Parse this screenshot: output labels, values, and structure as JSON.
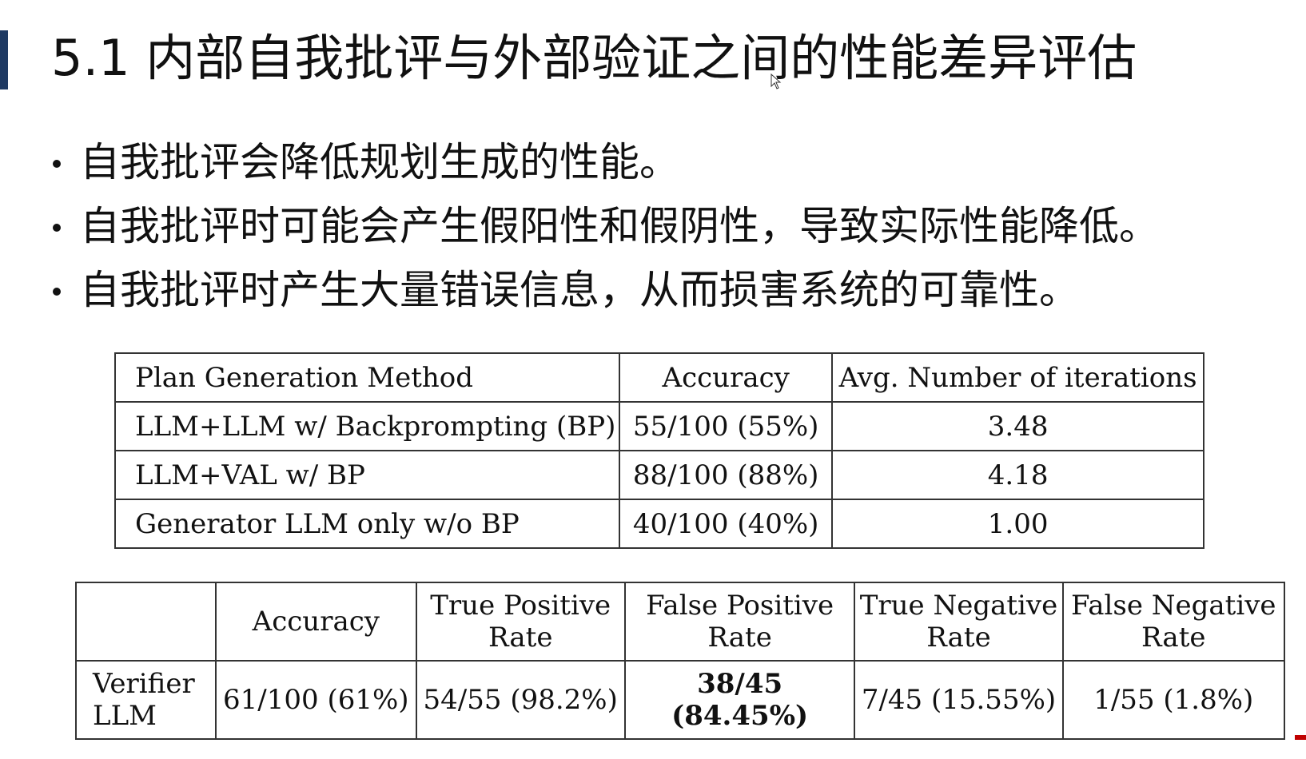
{
  "slide": {
    "title": "5.1 内部自我批评与外部验证之间的性能差异评估",
    "bullets": [
      "自我批评会降低规划生成的性能。",
      "自我批评时可能会产生假阳性和假阴性，导致实际性能降低。",
      "自我批评时产生大量错误信息，从而损害系统的可靠性。"
    ]
  },
  "table1": {
    "headers": [
      "Plan Generation Method",
      "Accuracy",
      "Avg. Number of iterations"
    ],
    "rows": [
      [
        "LLM+LLM w/ Backprompting (BP)",
        "55/100 (55%)",
        "3.48"
      ],
      [
        "LLM+VAL w/ BP",
        "88/100 (88%)",
        "4.18"
      ],
      [
        "Generator LLM only w/o BP",
        "40/100 (40%)",
        "1.00"
      ]
    ]
  },
  "table2": {
    "headers": [
      "",
      "Accuracy",
      "True Positive Rate",
      "False Positive Rate",
      "True Negative Rate",
      "False Negative Rate"
    ],
    "header_lines": [
      [
        "",
        ""
      ],
      [
        "Accuracy",
        ""
      ],
      [
        "True Positive",
        "Rate"
      ],
      [
        "False Positive",
        "Rate"
      ],
      [
        "True Negative",
        "Rate"
      ],
      [
        "False Negative",
        "Rate"
      ]
    ],
    "row_label_lines": [
      "Verifier",
      "LLM"
    ],
    "row": [
      "61/100 (61%)",
      "54/55 (98.2%)",
      "38/45 (84.45%)",
      "7/45 (15.55%)",
      "1/55 (1.8%)"
    ]
  },
  "colors": {
    "title_bar": "#1f3a63",
    "text": "#111111",
    "accent_mark": "#c00000"
  }
}
